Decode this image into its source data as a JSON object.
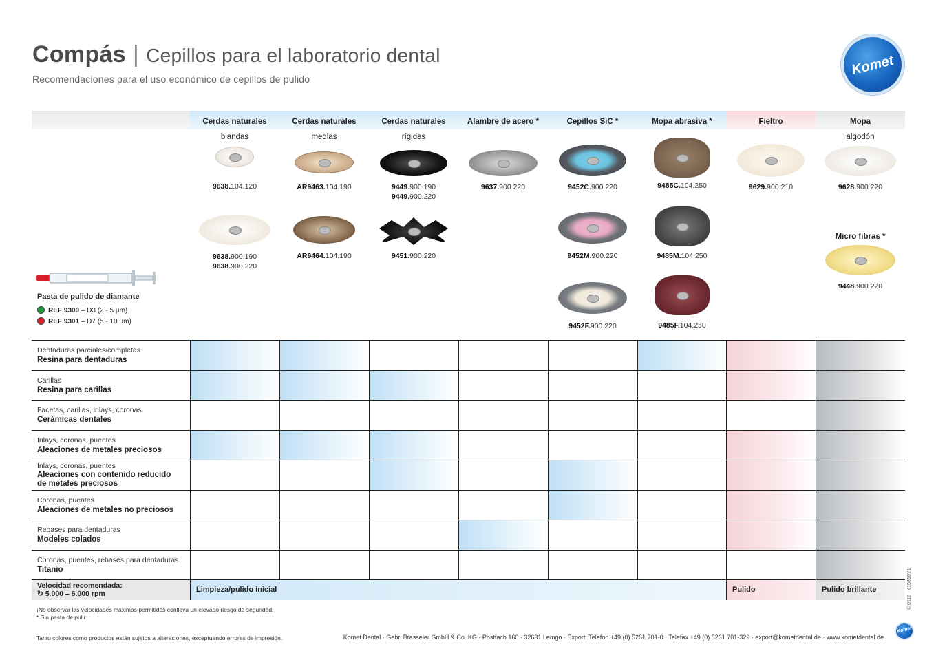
{
  "header": {
    "brand": "Compás",
    "separator": "|",
    "title": "Cepillos para el laboratorio dental",
    "subtitle": "Recomendaciones para el uso económico de cepillos de pulido",
    "logo_text": "Komet"
  },
  "columns": [
    {
      "title": "Cerdas naturales",
      "sub": "blandas"
    },
    {
      "title": "Cerdas naturales",
      "sub": "medias"
    },
    {
      "title": "Cerdas naturales",
      "sub": "rígidas"
    },
    {
      "title": "Alambre de acero *",
      "sub": ""
    },
    {
      "title": "Cepillos SiC *",
      "sub": ""
    },
    {
      "title": "Mopa abrasiva *",
      "sub": ""
    },
    {
      "title": "Fieltro",
      "sub": ""
    },
    {
      "title": "Mopa",
      "sub": "algodón"
    }
  ],
  "products": {
    "p1": {
      "bold": "9638.",
      "rest": "104.120"
    },
    "p2": {
      "bold": "AR9463.",
      "rest": "104.190"
    },
    "p3": {
      "bold": "9449.",
      "rest": "900.190",
      "bold2": "9449.",
      "rest2": "900.220"
    },
    "p4": {
      "bold": "9637.",
      "rest": "900.220"
    },
    "p5": {
      "bold": "9452C.",
      "rest": "900.220"
    },
    "p6": {
      "bold": "9485C.",
      "rest": "104.250"
    },
    "p7": {
      "bold": "9629.",
      "rest": "900.210"
    },
    "p8": {
      "bold": "9628.",
      "rest": "900.220"
    },
    "p9": {
      "bold": "9638.",
      "rest": "900.190",
      "bold2": "9638.",
      "rest2": "900.220"
    },
    "p10": {
      "bold": "AR9464.",
      "rest": "104.190"
    },
    "p11": {
      "bold": "9451.",
      "rest": "900.220"
    },
    "p12": {
      "bold": "9452M.",
      "rest": "900.220"
    },
    "p13": {
      "bold": "9485M.",
      "rest": "104.250"
    },
    "p14": {
      "bold": "9448.",
      "rest": "900.220"
    },
    "p15": {
      "bold": "9452F.",
      "rest": "900.220"
    },
    "p16": {
      "bold": "9485F.",
      "rest": "104.250"
    }
  },
  "microfibras_label": "Micro fibras *",
  "paste": {
    "title": "Pasta de pulido de diamante",
    "ref1_bold": "REF 9300",
    "ref1_rest": " – D3 (2 - 5 µm)",
    "ref2_bold": "REF 9301",
    "ref2_rest": " – D7 (5 - 10 µm)"
  },
  "rows": [
    {
      "line1": "Dentaduras parciales/completas",
      "line2": "Resina para dentaduras",
      "line3": ""
    },
    {
      "line1": "Carillas",
      "line2": "Resina para carillas",
      "line3": ""
    },
    {
      "line1": "Facetas, carillas, inlays, coronas",
      "line2": "Cerámicas dentales",
      "line3": ""
    },
    {
      "line1": "Inlays, coronas, puentes",
      "line2": "Aleaciones de metales preciosos",
      "line3": ""
    },
    {
      "line1": "Inlays, coronas, puentes",
      "line2": "Aleaciones con contenido reducido",
      "line3": "de metales preciosos"
    },
    {
      "line1": "Coronas, puentes",
      "line2": "Aleaciones de metales no preciosos",
      "line3": ""
    },
    {
      "line1": "Rebases para dentaduras",
      "line2": "Modeles colados",
      "line3": ""
    },
    {
      "line1": "Coronas, puentes, rebases para dentaduras",
      "line2": "Titanio",
      "line3": ""
    }
  ],
  "speed": {
    "label": "Velocidad recomendada:",
    "value": "5.000 – 6.000 rpm",
    "band1": "Limpieza/pulido inicial",
    "band2": "Pulido",
    "band3": "Pulido brillante"
  },
  "notes": {
    "warning": "¡No observar las velocidades máximas permitidas conlleva un elevado riesgo de seguridad!",
    "no_paste": "* Sin pasta de pulir",
    "disclaimer": "Tanto colores como productos están sujetos a alteraciones, exceptuando errores de impresión.",
    "contact": "Komet Dental · Gebr. Brasseler GmbH & Co. KG · Postfach 160 · 32631 Lemgo · Export: Telefon +49 (0) 5261 701-0 · Telefax +49 (0) 5261 701-329 · export@kometdental.de · www.kometdental.de",
    "code": "© 0113 · 410816V1"
  },
  "colors": {
    "blue": "#bfe0f6",
    "pink": "#f5d3d8",
    "gray": "#b9bcbf",
    "paste_green": "#1a9a3a",
    "paste_red": "#d8202a"
  }
}
